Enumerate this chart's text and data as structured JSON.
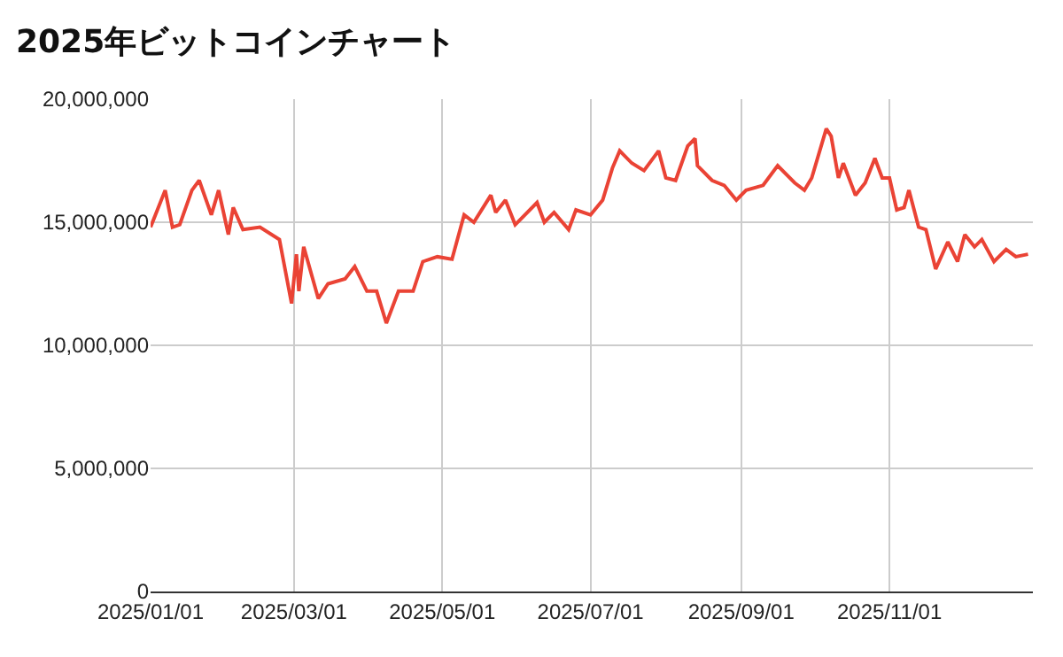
{
  "chart_data": {
    "type": "line",
    "title": "2025年ビットコインチャート",
    "x": [
      "2025-01-01",
      "2025-01-07",
      "2025-01-10",
      "2025-01-13",
      "2025-01-18",
      "2025-01-21",
      "2025-01-26",
      "2025-01-29",
      "2025-02-02",
      "2025-02-04",
      "2025-02-08",
      "2025-02-15",
      "2025-02-23",
      "2025-02-28",
      "2025-03-02",
      "2025-03-03",
      "2025-03-05",
      "2025-03-11",
      "2025-03-15",
      "2025-03-22",
      "2025-03-26",
      "2025-03-31",
      "2025-04-04",
      "2025-04-08",
      "2025-04-13",
      "2025-04-19",
      "2025-04-23",
      "2025-04-29",
      "2025-05-05",
      "2025-05-10",
      "2025-05-14",
      "2025-05-21",
      "2025-05-23",
      "2025-05-27",
      "2025-05-31",
      "2025-06-09",
      "2025-06-12",
      "2025-06-16",
      "2025-06-22",
      "2025-06-25",
      "2025-07-01",
      "2025-07-06",
      "2025-07-10",
      "2025-07-13",
      "2025-07-18",
      "2025-07-23",
      "2025-07-29",
      "2025-08-01",
      "2025-08-05",
      "2025-08-10",
      "2025-08-13",
      "2025-08-14",
      "2025-08-20",
      "2025-08-25",
      "2025-08-30",
      "2025-09-03",
      "2025-09-10",
      "2025-09-16",
      "2025-09-23",
      "2025-09-27",
      "2025-09-30",
      "2025-10-06",
      "2025-10-08",
      "2025-10-11",
      "2025-10-13",
      "2025-10-18",
      "2025-10-22",
      "2025-10-26",
      "2025-10-29",
      "2025-11-01",
      "2025-11-04",
      "2025-11-07",
      "2025-11-09",
      "2025-11-13",
      "2025-11-16",
      "2025-11-20",
      "2025-11-25",
      "2025-11-29",
      "2025-12-02",
      "2025-12-06",
      "2025-12-09",
      "2025-12-14",
      "2025-12-19",
      "2025-12-23",
      "2025-12-28"
    ],
    "series": [
      {
        "color": "#ea4335",
        "values": [
          14800000,
          16300000,
          14800000,
          14900000,
          16300000,
          16700000,
          15300000,
          16300000,
          14500000,
          15600000,
          14700000,
          14800000,
          14300000,
          11700000,
          13700000,
          12200000,
          14000000,
          11900000,
          12500000,
          12700000,
          13200000,
          12200000,
          12200000,
          10900000,
          12200000,
          12200000,
          13400000,
          13600000,
          13500000,
          15300000,
          15000000,
          16100000,
          15400000,
          15900000,
          14900000,
          15800000,
          15000000,
          15400000,
          14700000,
          15500000,
          15300000,
          15900000,
          17200000,
          17900000,
          17400000,
          17100000,
          17900000,
          16800000,
          16700000,
          18100000,
          18400000,
          17300000,
          16700000,
          16500000,
          15900000,
          16300000,
          16500000,
          17300000,
          16600000,
          16300000,
          16800000,
          18800000,
          18500000,
          16800000,
          17400000,
          16100000,
          16600000,
          17600000,
          16800000,
          16800000,
          15500000,
          15600000,
          16300000,
          14800000,
          14700000,
          13100000,
          14200000,
          13400000,
          14500000,
          14000000,
          14300000,
          13400000,
          13900000,
          13600000,
          13700000
        ]
      }
    ],
    "xlim": [
      "2025-01-01",
      "2025-12-30"
    ],
    "xticks": [
      {
        "value": "2025-01-01",
        "label": "2025/01/01"
      },
      {
        "value": "2025-03-01",
        "label": "2025/03/01"
      },
      {
        "value": "2025-05-01",
        "label": "2025/05/01"
      },
      {
        "value": "2025-07-01",
        "label": "2025/07/01"
      },
      {
        "value": "2025-09-01",
        "label": "2025/09/01"
      },
      {
        "value": "2025-11-01",
        "label": "2025/11/01"
      }
    ],
    "ylim": [
      0,
      20000000
    ],
    "yticks": [
      0,
      {
        "value": 5000000,
        "label": "5,000,000"
      },
      {
        "value": 10000000,
        "label": "10,000,000"
      },
      {
        "value": 15000000,
        "label": "15,000,000"
      },
      {
        "value": 20000000,
        "label": "20,000,000"
      }
    ],
    "grid": true,
    "marker": "none",
    "line_style": "solid"
  }
}
